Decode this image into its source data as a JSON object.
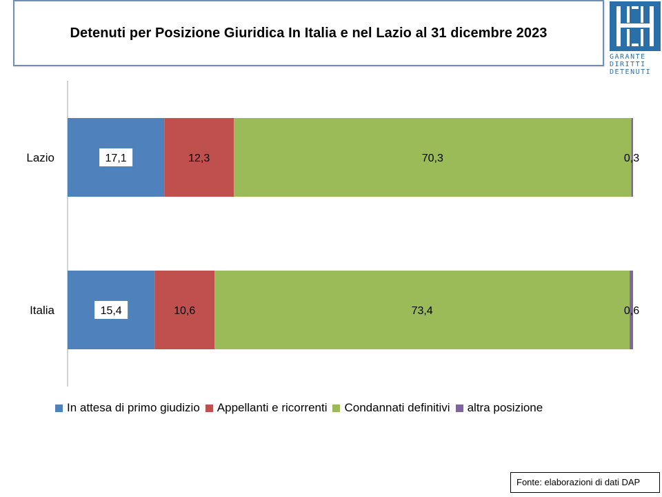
{
  "title": "Detenuti per Posizione Giuridica  In Italia e nel Lazio al 31 dicembre 2023",
  "logo": {
    "lines": [
      "GARANTE",
      "DIRITTI",
      "DETENUTI"
    ],
    "color": "#2a6fa8"
  },
  "source": "Fonte: elaborazioni di dati DAP",
  "chart_data": {
    "type": "bar",
    "orientation": "horizontal",
    "stacked": true,
    "categories": [
      "Lazio",
      "Italia"
    ],
    "series": [
      {
        "name": "In attesa di primo giudizio",
        "color": "#4f81bd",
        "values": [
          17.1,
          15.4
        ],
        "labels": [
          "17,1",
          "15,4"
        ]
      },
      {
        "name": "Appellanti e ricorrenti",
        "color": "#c0504d",
        "values": [
          12.3,
          10.6
        ],
        "labels": [
          "12,3",
          "10,6"
        ]
      },
      {
        "name": "Condannati definitivi",
        "color": "#9bbb59",
        "values": [
          70.3,
          73.4
        ],
        "labels": [
          "70,3",
          "73,4"
        ]
      },
      {
        "name": "altra posizione",
        "color": "#8064a2",
        "values": [
          0.3,
          0.6
        ],
        "labels": [
          "0,3",
          "0,6"
        ]
      }
    ],
    "xlim": [
      0,
      100
    ],
    "grid": false,
    "legend_position": "bottom"
  }
}
